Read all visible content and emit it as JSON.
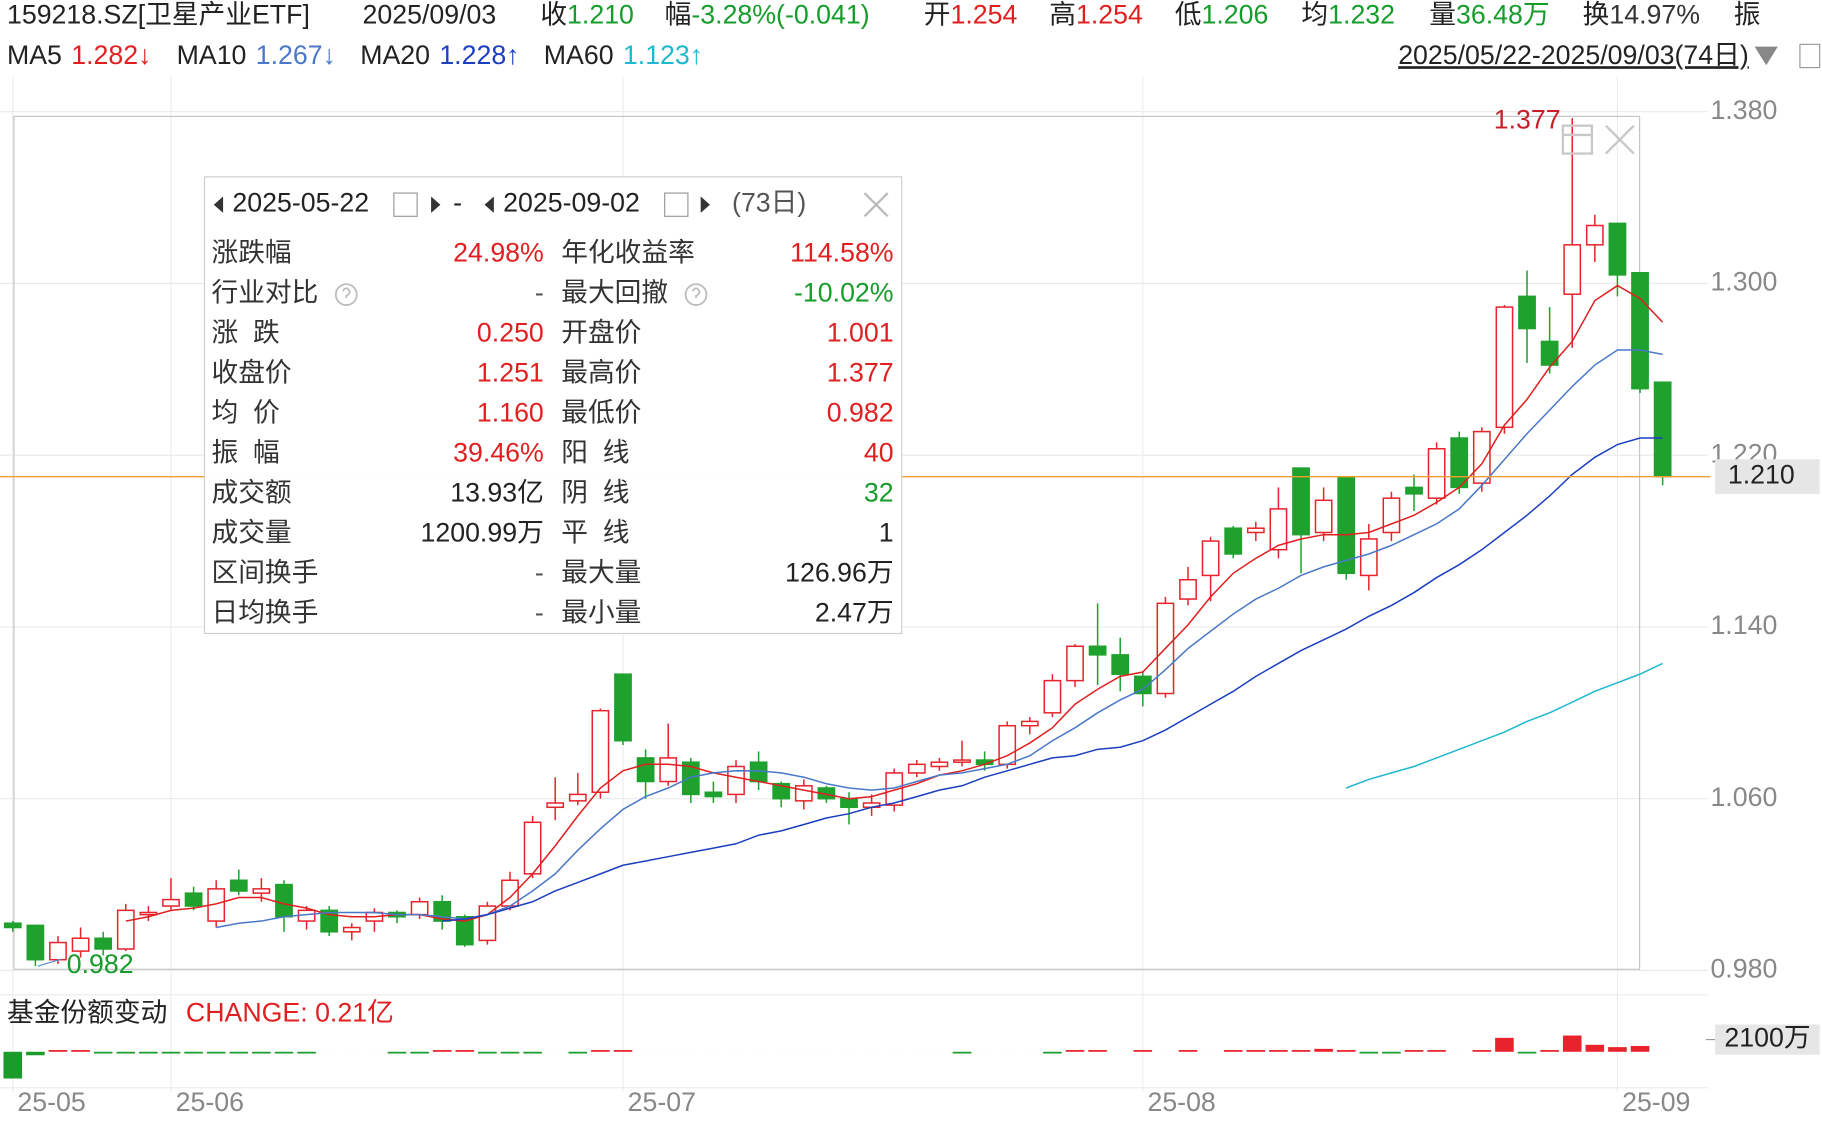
{
  "header": {
    "code": "159218.SZ[卫星产业ETF]",
    "date": "2025/09/03",
    "quotes": [
      {
        "label": "收",
        "value": "1.210",
        "color": "#169c2b"
      },
      {
        "label": "幅",
        "value": "-3.28%(-0.041)",
        "color": "#169c2b"
      },
      {
        "label": "开",
        "value": "1.254",
        "color": "#e02020"
      },
      {
        "label": "高",
        "value": "1.254",
        "color": "#e02020"
      },
      {
        "label": "低",
        "value": "1.206",
        "color": "#169c2b"
      },
      {
        "label": "均",
        "value": "1.232",
        "color": "#169c2b"
      },
      {
        "label": "量",
        "value": "36.48万",
        "color": "#169c2b"
      },
      {
        "label": "换",
        "value": "14.97%",
        "color": "#333333"
      },
      {
        "label": "振"
      }
    ],
    "range": "2025/05/22-2025/09/03(74日)"
  },
  "chart_data": [
    {
      "type": "candlestick",
      "categories": [
        "25-05",
        null,
        null,
        null,
        null,
        null,
        null,
        "25-06",
        null,
        null,
        null,
        null,
        null,
        null,
        null,
        null,
        null,
        null,
        null,
        null,
        null,
        null,
        null,
        null,
        null,
        null,
        null,
        "25-07",
        null,
        null,
        null,
        null,
        null,
        null,
        null,
        null,
        null,
        null,
        null,
        null,
        null,
        null,
        null,
        null,
        null,
        null,
        null,
        null,
        null,
        null,
        "25-08",
        null,
        null,
        null,
        null,
        null,
        null,
        null,
        null,
        null,
        null,
        null,
        null,
        null,
        null,
        null,
        null,
        null,
        null,
        null,
        null,
        "25-09",
        null,
        null
      ],
      "open": [
        1.002,
        1.001,
        0.985,
        0.989,
        0.995,
        0.99,
        1.006,
        1.01,
        1.016,
        1.003,
        1.022,
        1.016,
        1.02,
        1.003,
        1.008,
        0.998,
        1.003,
        1.007,
        1.006,
        1.012,
        1.005,
        0.994,
        1.01,
        1.025,
        1.056,
        1.059,
        1.063,
        1.118,
        1.079,
        1.068,
        1.077,
        1.063,
        1.062,
        1.077,
        1.067,
        1.059,
        1.065,
        1.06,
        1.056,
        1.057,
        1.072,
        1.075,
        1.077,
        1.078,
        1.076,
        1.094,
        1.1,
        1.115,
        1.131,
        1.127,
        1.117,
        1.109,
        1.153,
        1.164,
        1.186,
        1.184,
        1.176,
        1.214,
        1.184,
        1.21,
        1.164,
        1.184,
        1.205,
        1.2,
        1.228,
        1.207,
        1.233,
        1.294,
        1.273,
        1.295,
        1.318,
        1.328,
        1.305,
        1.254
      ],
      "high": [
        1.003,
        1.001,
        0.996,
        1.0,
        0.998,
        1.011,
        1.01,
        1.023,
        1.019,
        1.022,
        1.027,
        1.023,
        1.022,
        1.01,
        1.01,
        1.002,
        1.009,
        1.008,
        1.014,
        1.015,
        1.006,
        1.012,
        1.026,
        1.052,
        1.07,
        1.072,
        1.102,
        1.118,
        1.083,
        1.095,
        1.079,
        1.068,
        1.078,
        1.082,
        1.068,
        1.069,
        1.066,
        1.063,
        1.062,
        1.074,
        1.078,
        1.079,
        1.087,
        1.082,
        1.096,
        1.098,
        1.118,
        1.132,
        1.151,
        1.135,
        1.119,
        1.154,
        1.168,
        1.182,
        1.187,
        1.189,
        1.205,
        1.214,
        1.205,
        1.21,
        1.188,
        1.203,
        1.211,
        1.226,
        1.231,
        1.233,
        1.29,
        1.306,
        1.289,
        1.377,
        1.332,
        1.328,
        1.305,
        1.254
      ],
      "low": [
        0.998,
        0.982,
        0.983,
        0.986,
        0.987,
        0.989,
        1.003,
        1.008,
        1.008,
        1.0,
        1.015,
        1.012,
        0.998,
        0.999,
        0.996,
        0.994,
        0.998,
        1.002,
        1.004,
        0.999,
        0.991,
        0.992,
        1.008,
        1.023,
        1.05,
        1.057,
        1.06,
        1.085,
        1.06,
        1.066,
        1.058,
        1.058,
        1.058,
        1.064,
        1.056,
        1.055,
        1.058,
        1.048,
        1.052,
        1.054,
        1.07,
        1.073,
        1.075,
        1.073,
        1.074,
        1.09,
        1.098,
        1.112,
        1.113,
        1.11,
        1.103,
        1.107,
        1.15,
        1.152,
        1.172,
        1.18,
        1.172,
        1.165,
        1.18,
        1.162,
        1.157,
        1.18,
        1.194,
        1.197,
        1.202,
        1.203,
        1.23,
        1.263,
        1.258,
        1.27,
        1.31,
        1.294,
        1.249,
        1.206
      ],
      "close": [
        1.0,
        0.985,
        0.993,
        0.995,
        0.99,
        1.008,
        1.007,
        1.013,
        1.01,
        1.018,
        1.017,
        1.018,
        1.005,
        1.008,
        0.998,
        1.0,
        1.007,
        1.005,
        1.012,
        1.003,
        0.992,
        1.01,
        1.022,
        1.049,
        1.058,
        1.062,
        1.101,
        1.087,
        1.068,
        1.079,
        1.062,
        1.061,
        1.075,
        1.068,
        1.06,
        1.066,
        1.06,
        1.056,
        1.058,
        1.072,
        1.076,
        1.077,
        1.078,
        1.076,
        1.094,
        1.096,
        1.115,
        1.131,
        1.127,
        1.118,
        1.109,
        1.151,
        1.162,
        1.18,
        1.174,
        1.186,
        1.195,
        1.183,
        1.199,
        1.165,
        1.181,
        1.2,
        1.202,
        1.223,
        1.205,
        1.231,
        1.289,
        1.279,
        1.262,
        1.318,
        1.327,
        1.304,
        1.251,
        1.21
      ],
      "up_color": "#e8232c",
      "down_color": "#1fa12e",
      "series": [
        {
          "name": "MA5",
          "color": "#e02020",
          "last_label": "1.282↓",
          "values": [
            null,
            null,
            null,
            null,
            null,
            1.003,
            1.005,
            1.008,
            1.009,
            1.011,
            1.014,
            1.014,
            1.011,
            1.009,
            1.006,
            1.005,
            1.005,
            1.006,
            1.006,
            1.004,
            1.003,
            1.006,
            1.014,
            1.025,
            1.038,
            1.052,
            1.065,
            1.073,
            1.076,
            1.076,
            1.075,
            1.072,
            1.07,
            1.068,
            1.066,
            1.064,
            1.062,
            1.06,
            1.061,
            1.064,
            1.067,
            1.071,
            1.073,
            1.076,
            1.08,
            1.086,
            1.093,
            1.104,
            1.111,
            1.117,
            1.119,
            1.13,
            1.141,
            1.154,
            1.165,
            1.172,
            1.178,
            1.181,
            1.183,
            1.183,
            1.184,
            1.188,
            1.192,
            1.198,
            1.205,
            1.216,
            1.234,
            1.246,
            1.261,
            1.273,
            1.292,
            1.299,
            1.293,
            1.282
          ]
        },
        {
          "name": "MA10",
          "color": "#4a78c8",
          "last_label": "1.267↓",
          "values": [
            null,
            null,
            null,
            null,
            null,
            null,
            null,
            null,
            null,
            1.0,
            1.002,
            1.003,
            1.005,
            1.006,
            1.007,
            1.007,
            1.007,
            1.006,
            1.006,
            1.005,
            1.004,
            1.006,
            1.01,
            1.017,
            1.025,
            1.036,
            1.046,
            1.055,
            1.061,
            1.065,
            1.07,
            1.072,
            1.073,
            1.073,
            1.072,
            1.07,
            1.067,
            1.065,
            1.064,
            1.065,
            1.068,
            1.071,
            1.072,
            1.074,
            1.076,
            1.08,
            1.087,
            1.093,
            1.1,
            1.106,
            1.111,
            1.12,
            1.13,
            1.138,
            1.146,
            1.153,
            1.158,
            1.164,
            1.168,
            1.171,
            1.174,
            1.178,
            1.183,
            1.188,
            1.195,
            1.206,
            1.218,
            1.23,
            1.241,
            1.252,
            1.262,
            1.269,
            1.269,
            1.267
          ]
        },
        {
          "name": "MA20",
          "color": "#1c3fc0",
          "last_label": "1.228↑",
          "values": [
            null,
            null,
            null,
            null,
            null,
            null,
            null,
            null,
            null,
            null,
            null,
            null,
            null,
            null,
            null,
            null,
            null,
            null,
            null,
            1.003,
            1.004,
            1.006,
            1.009,
            1.012,
            1.017,
            1.021,
            1.025,
            1.029,
            1.031,
            1.033,
            1.035,
            1.037,
            1.039,
            1.043,
            1.045,
            1.048,
            1.051,
            1.053,
            1.056,
            1.058,
            1.061,
            1.064,
            1.066,
            1.07,
            1.073,
            1.076,
            1.079,
            1.08,
            1.083,
            1.084,
            1.087,
            1.092,
            1.098,
            1.104,
            1.11,
            1.117,
            1.123,
            1.129,
            1.134,
            1.139,
            1.145,
            1.15,
            1.156,
            1.163,
            1.169,
            1.176,
            1.184,
            1.192,
            1.201,
            1.211,
            1.219,
            1.225,
            1.228,
            1.228
          ]
        },
        {
          "name": "MA60",
          "color": "#1fb8d0",
          "last_label": "1.123↑",
          "values": [
            null,
            null,
            null,
            null,
            null,
            null,
            null,
            null,
            null,
            null,
            null,
            null,
            null,
            null,
            null,
            null,
            null,
            null,
            null,
            null,
            null,
            null,
            null,
            null,
            null,
            null,
            null,
            null,
            null,
            null,
            null,
            null,
            null,
            null,
            null,
            null,
            null,
            null,
            null,
            null,
            null,
            null,
            null,
            null,
            null,
            null,
            null,
            null,
            null,
            null,
            null,
            null,
            null,
            null,
            null,
            null,
            null,
            null,
            null,
            1.065,
            1.069,
            1.072,
            1.075,
            1.079,
            1.083,
            1.087,
            1.091,
            1.096,
            1.1,
            1.105,
            1.11,
            1.114,
            1.118,
            1.123
          ]
        }
      ],
      "ylim": [
        0.98,
        1.38
      ],
      "yticks": [
        {
          "value": 0.98,
          "label": "0.980"
        },
        {
          "value": 1.06,
          "label": "1.060"
        },
        {
          "value": 1.14,
          "label": "1.140"
        },
        {
          "value": 1.22,
          "label": "1.220"
        },
        {
          "value": 1.3,
          "label": "1.300"
        },
        {
          "value": 1.38,
          "label": "1.380"
        }
      ],
      "grid": true,
      "price_line": {
        "value": 1.21,
        "label": "1.210",
        "color": "#f0a030"
      },
      "annotations": [
        {
          "text": "1.377",
          "value": 1.377,
          "color": "#c8202a"
        },
        {
          "text": "0.982",
          "value": 0.982,
          "color": "#169c2b"
        }
      ]
    },
    {
      "type": "bar",
      "title": "基金份额变动",
      "subtitle": "CHANGE: 0.21亿",
      "values": [
        -4600,
        -600,
        300,
        300,
        -300,
        -300,
        -300,
        -300,
        -300,
        -300,
        -300,
        -300,
        -300,
        -300,
        0,
        0,
        0,
        -300,
        -300,
        300,
        300,
        -300,
        -300,
        -300,
        0,
        -300,
        300,
        300,
        0,
        0,
        0,
        0,
        0,
        0,
        0,
        0,
        0,
        0,
        0,
        0,
        0,
        0,
        -300,
        0,
        0,
        0,
        -300,
        300,
        300,
        0,
        300,
        0,
        300,
        0,
        300,
        300,
        300,
        300,
        500,
        300,
        -300,
        -300,
        300,
        300,
        0,
        300,
        2400,
        -300,
        300,
        2800,
        1200,
        800,
        1000,
        0
      ],
      "up_color": "#e8232c",
      "down_color": "#1a9b2a",
      "ylim": [
        -5000,
        5000
      ],
      "yticks": [
        {
          "value": 2100,
          "label": "2100万"
        }
      ]
    }
  ],
  "summary_panel": {
    "start_date": "2025-05-22",
    "separator": "-",
    "end_date": "2025-09-02",
    "days": "(73日)",
    "rows": [
      {
        "left": {
          "label": "涨跌幅",
          "value": "24.98%",
          "color": "#e02020"
        },
        "right": {
          "label": "年化收益率",
          "value": "114.58%",
          "color": "#e02020"
        }
      },
      {
        "left": {
          "label": "行业对比",
          "value": "-",
          "color": "#555555",
          "help": true
        },
        "right": {
          "label": "最大回撤",
          "value": "-10.02%",
          "color": "#169c2b",
          "help": true
        }
      },
      {
        "left": {
          "label": "涨  跌",
          "value": "0.250",
          "color": "#e02020"
        },
        "right": {
          "label": "开盘价",
          "value": "1.001",
          "color": "#e02020"
        }
      },
      {
        "left": {
          "label": "收盘价",
          "value": "1.251",
          "color": "#e02020"
        },
        "right": {
          "label": "最高价",
          "value": "1.377",
          "color": "#e02020"
        }
      },
      {
        "left": {
          "label": "均  价",
          "value": "1.160",
          "color": "#e02020"
        },
        "right": {
          "label": "最低价",
          "value": "0.982",
          "color": "#e02020"
        }
      },
      {
        "left": {
          "label": "振  幅",
          "value": "39.46%",
          "color": "#e02020"
        },
        "right": {
          "label": "阳  线",
          "value": "40",
          "color": "#e02020"
        }
      },
      {
        "left": {
          "label": "成交额",
          "value": "13.93亿",
          "color": "#222222"
        },
        "right": {
          "label": "阴  线",
          "value": "32",
          "color": "#169c2b"
        }
      },
      {
        "left": {
          "label": "成交量",
          "value": "1200.99万",
          "color": "#222222"
        },
        "right": {
          "label": "平  线",
          "value": "1",
          "color": "#222222"
        }
      },
      {
        "left": {
          "label": "区间换手",
          "value": "-",
          "color": "#555555"
        },
        "right": {
          "label": "最大量",
          "value": "126.96万",
          "color": "#222222"
        }
      },
      {
        "left": {
          "label": "日均换手",
          "value": "-",
          "color": "#555555"
        },
        "right": {
          "label": "最小量",
          "value": "2.47万",
          "color": "#222222"
        }
      }
    ]
  }
}
